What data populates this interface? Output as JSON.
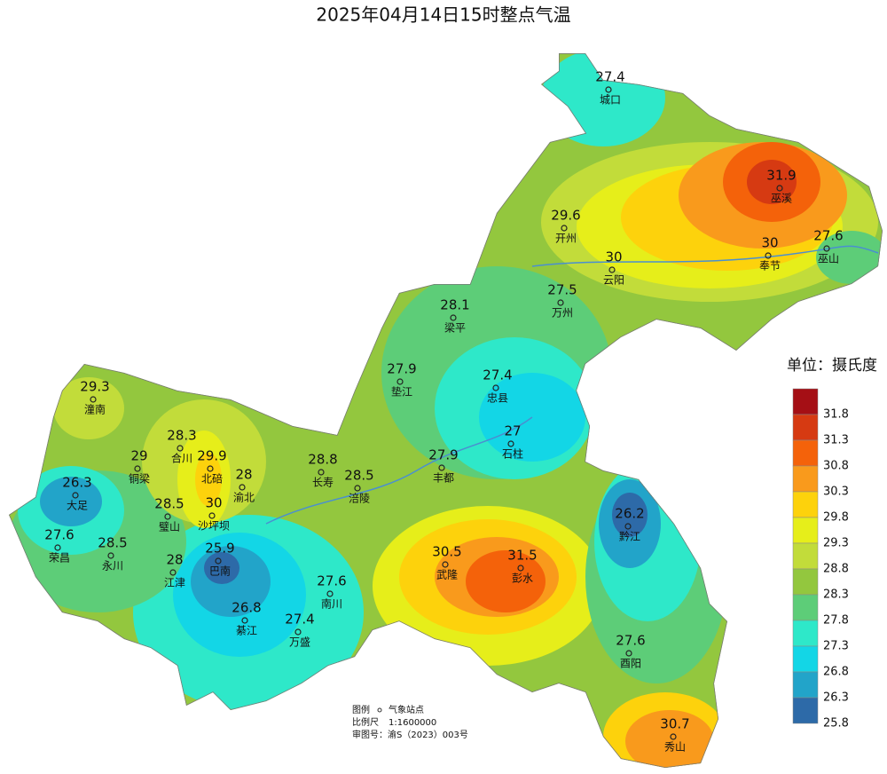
{
  "title": "2025年04月14日15时整点气温",
  "stations": [
    {
      "name": "城口",
      "value": 27.4
    },
    {
      "name": "巫溪",
      "value": 31.9
    },
    {
      "name": "开州",
      "value": 29.6
    },
    {
      "name": "云阳",
      "value": 30
    },
    {
      "name": "奉节",
      "value": 30
    },
    {
      "name": "巫山",
      "value": 27.6
    },
    {
      "name": "万州",
      "value": 27.5
    },
    {
      "name": "梁平",
      "value": 28.1
    },
    {
      "name": "垫江",
      "value": 27.9
    },
    {
      "name": "忠县",
      "value": 27.4
    },
    {
      "name": "石柱",
      "value": 27
    },
    {
      "name": "丰都",
      "value": 27.9
    },
    {
      "name": "长寿",
      "value": 28.8
    },
    {
      "name": "涪陵",
      "value": 28.5
    },
    {
      "name": "潼南",
      "value": 29.3
    },
    {
      "name": "合川",
      "value": 28.3
    },
    {
      "name": "铜梁",
      "value": 29
    },
    {
      "name": "北碚",
      "value": 29.9
    },
    {
      "name": "渝北",
      "value": 28
    },
    {
      "name": "大足",
      "value": 26.3
    },
    {
      "name": "沙坪坝",
      "value": 30
    },
    {
      "name": "璧山",
      "value": 28.5
    },
    {
      "name": "荣昌",
      "value": 27.6
    },
    {
      "name": "永川",
      "value": 28.5
    },
    {
      "name": "江津",
      "value": 28
    },
    {
      "name": "巴南",
      "value": 25.9
    },
    {
      "name": "南川",
      "value": 27.6
    },
    {
      "name": "綦江",
      "value": 26.8
    },
    {
      "name": "万盛",
      "value": 27.4
    },
    {
      "name": "武隆",
      "value": 30.5
    },
    {
      "name": "彭水",
      "value": 31.5
    },
    {
      "name": "黔江",
      "value": 26.2
    },
    {
      "name": "酉阳",
      "value": 27.6
    },
    {
      "name": "秀山",
      "value": 30.7
    }
  ],
  "legend": {
    "title": "单位：摄氏度",
    "colors": [
      "#a50f15",
      "#d63a12",
      "#f4620a",
      "#f99a1c",
      "#fdd20c",
      "#e6ee1a",
      "#c2dc3a",
      "#93c73e",
      "#5dcd78",
      "#2ee8c9",
      "#13d6e6",
      "#22a4c9",
      "#2d6aa8"
    ],
    "labels": [
      31.8,
      31.3,
      30.8,
      30.3,
      29.8,
      29.3,
      28.8,
      28.3,
      27.8,
      27.3,
      26.8,
      26.3,
      25.8
    ]
  },
  "notes": {
    "legend_label": "图例",
    "station_label": "气象站点",
    "scale_label": "比例尺",
    "scale": "1:1600000",
    "approval": "审图号：渝S（2023）003号"
  }
}
